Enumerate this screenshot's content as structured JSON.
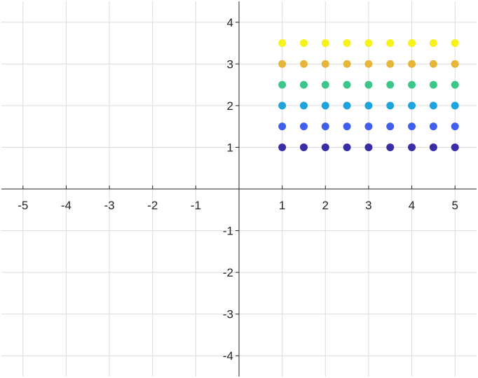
{
  "chart_data": {
    "type": "scatter",
    "title": "",
    "xlabel": "",
    "ylabel": "",
    "xlim": [
      -5.5,
      5.5
    ],
    "ylim": [
      -4.5,
      4.5
    ],
    "axis_location": "origin",
    "grid": true,
    "x_ticks": [
      -5,
      -4,
      -3,
      -2,
      -1,
      1,
      2,
      3,
      4,
      5
    ],
    "y_ticks": [
      -4,
      -3,
      -2,
      -1,
      1,
      2,
      3,
      4
    ],
    "x_tick_labels": [
      "-5",
      "-4",
      "-3",
      "-2",
      "-1",
      "1",
      "2",
      "3",
      "4",
      "5"
    ],
    "y_tick_labels": [
      "-4",
      "-3",
      "-2",
      "-1",
      "1",
      "2",
      "3",
      "4"
    ],
    "x": [
      1,
      1.5,
      2,
      2.5,
      3,
      3.5,
      4,
      4.5,
      5
    ],
    "series": [
      {
        "y": 1.0,
        "color": "#3a2ea6",
        "values": [
          1.0,
          1.0,
          1.0,
          1.0,
          1.0,
          1.0,
          1.0,
          1.0,
          1.0
        ]
      },
      {
        "y": 1.5,
        "color": "#3f5fec",
        "values": [
          1.5,
          1.5,
          1.5,
          1.5,
          1.5,
          1.5,
          1.5,
          1.5,
          1.5
        ]
      },
      {
        "y": 2.0,
        "color": "#1fa3dd",
        "values": [
          2.0,
          2.0,
          2.0,
          2.0,
          2.0,
          2.0,
          2.0,
          2.0,
          2.0
        ]
      },
      {
        "y": 2.5,
        "color": "#3cc68a",
        "values": [
          2.5,
          2.5,
          2.5,
          2.5,
          2.5,
          2.5,
          2.5,
          2.5,
          2.5
        ]
      },
      {
        "y": 3.0,
        "color": "#e6b53a",
        "values": [
          3.0,
          3.0,
          3.0,
          3.0,
          3.0,
          3.0,
          3.0,
          3.0,
          3.0
        ]
      },
      {
        "y": 3.5,
        "color": "#f8f21c",
        "values": [
          3.5,
          3.5,
          3.5,
          3.5,
          3.5,
          3.5,
          3.5,
          3.5,
          3.5
        ]
      }
    ]
  }
}
